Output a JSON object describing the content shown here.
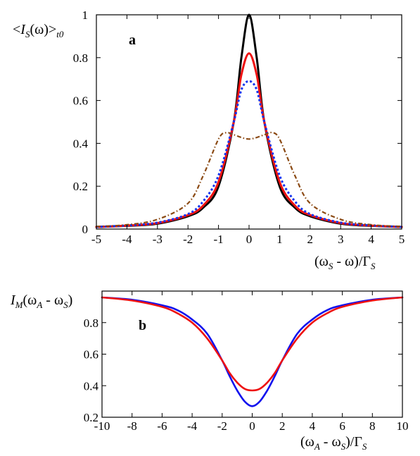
{
  "chart_data": [
    {
      "type": "line",
      "panel_label": "a",
      "ylabel": "<I_S(ω)>_t0",
      "xlabel": "(ω_S - ω)/Γ_S",
      "xlim": [
        -5,
        5
      ],
      "ylim": [
        0,
        1
      ],
      "xticks": [
        -5,
        -4,
        -3,
        -2,
        -1,
        0,
        1,
        2,
        3,
        4,
        5
      ],
      "yticks": [
        0,
        0.2,
        0.4,
        0.6,
        0.8,
        1
      ],
      "grid": false,
      "series": [
        {
          "color": "#000000",
          "style": "solid",
          "x": [
            -5,
            -4,
            -3,
            -2,
            -1.5,
            -1,
            -0.5,
            -0.25,
            0,
            0.25,
            0.5,
            1,
            1.5,
            2,
            3,
            4,
            5
          ],
          "y": [
            0.01,
            0.015,
            0.025,
            0.06,
            0.1,
            0.2,
            0.5,
            0.8,
            1.0,
            0.8,
            0.5,
            0.2,
            0.1,
            0.06,
            0.025,
            0.015,
            0.01
          ]
        },
        {
          "color": "#ee1111",
          "style": "solid",
          "x": [
            -5,
            -4,
            -3,
            -2,
            -1.5,
            -1,
            -0.5,
            -0.25,
            0,
            0.25,
            0.5,
            1,
            1.5,
            2,
            3,
            4,
            5
          ],
          "y": [
            0.01,
            0.016,
            0.028,
            0.065,
            0.11,
            0.22,
            0.5,
            0.72,
            0.82,
            0.72,
            0.5,
            0.22,
            0.11,
            0.065,
            0.028,
            0.016,
            0.01
          ]
        },
        {
          "color": "#1133ee",
          "style": "dotted",
          "x": [
            -5,
            -4,
            -3,
            -2,
            -1.5,
            -1,
            -0.5,
            -0.25,
            0,
            0.25,
            0.5,
            1,
            1.5,
            2,
            3,
            4,
            5
          ],
          "y": [
            0.01,
            0.017,
            0.03,
            0.07,
            0.13,
            0.25,
            0.5,
            0.65,
            0.69,
            0.65,
            0.5,
            0.25,
            0.13,
            0.07,
            0.03,
            0.017,
            0.01
          ]
        },
        {
          "color": "#8b4a14",
          "style": "dashdot",
          "x": [
            -5,
            -4,
            -3,
            -2,
            -1.5,
            -1,
            -0.75,
            -0.5,
            0,
            0.5,
            0.75,
            1,
            1.5,
            2,
            3,
            4,
            5
          ],
          "y": [
            0.012,
            0.02,
            0.045,
            0.12,
            0.25,
            0.42,
            0.45,
            0.44,
            0.42,
            0.44,
            0.45,
            0.42,
            0.25,
            0.12,
            0.045,
            0.02,
            0.012
          ]
        }
      ]
    },
    {
      "type": "line",
      "panel_label": "b",
      "ylabel": "I_M(ω_A - ω_S)",
      "xlabel": "(ω_A - ω_S)/Γ_S",
      "xlim": [
        -10,
        10
      ],
      "ylim": [
        0.2,
        1
      ],
      "xticks": [
        -10,
        -8,
        -6,
        -4,
        -2,
        0,
        2,
        4,
        6,
        8,
        10
      ],
      "yticks": [
        0.2,
        0.4,
        0.6,
        0.8
      ],
      "grid": false,
      "series": [
        {
          "color": "#1111ee",
          "style": "solid",
          "x": [
            -10,
            -8,
            -6,
            -5,
            -4,
            -3,
            -2,
            -1.5,
            -1,
            -0.5,
            0,
            0.5,
            1,
            1.5,
            2,
            3,
            4,
            5,
            6,
            8,
            10
          ],
          "y": [
            0.96,
            0.945,
            0.91,
            0.88,
            0.82,
            0.73,
            0.56,
            0.46,
            0.37,
            0.3,
            0.27,
            0.3,
            0.37,
            0.46,
            0.56,
            0.73,
            0.82,
            0.88,
            0.91,
            0.945,
            0.96
          ]
        },
        {
          "color": "#ee1111",
          "style": "solid",
          "x": [
            -10,
            -8,
            -6,
            -5,
            -4,
            -3,
            -2,
            -1.5,
            -1,
            -0.5,
            0,
            0.5,
            1,
            1.5,
            2,
            3,
            4,
            5,
            6,
            8,
            10
          ],
          "y": [
            0.96,
            0.94,
            0.9,
            0.86,
            0.8,
            0.7,
            0.56,
            0.48,
            0.42,
            0.38,
            0.37,
            0.38,
            0.42,
            0.48,
            0.56,
            0.7,
            0.8,
            0.86,
            0.9,
            0.94,
            0.96
          ]
        }
      ]
    }
  ]
}
